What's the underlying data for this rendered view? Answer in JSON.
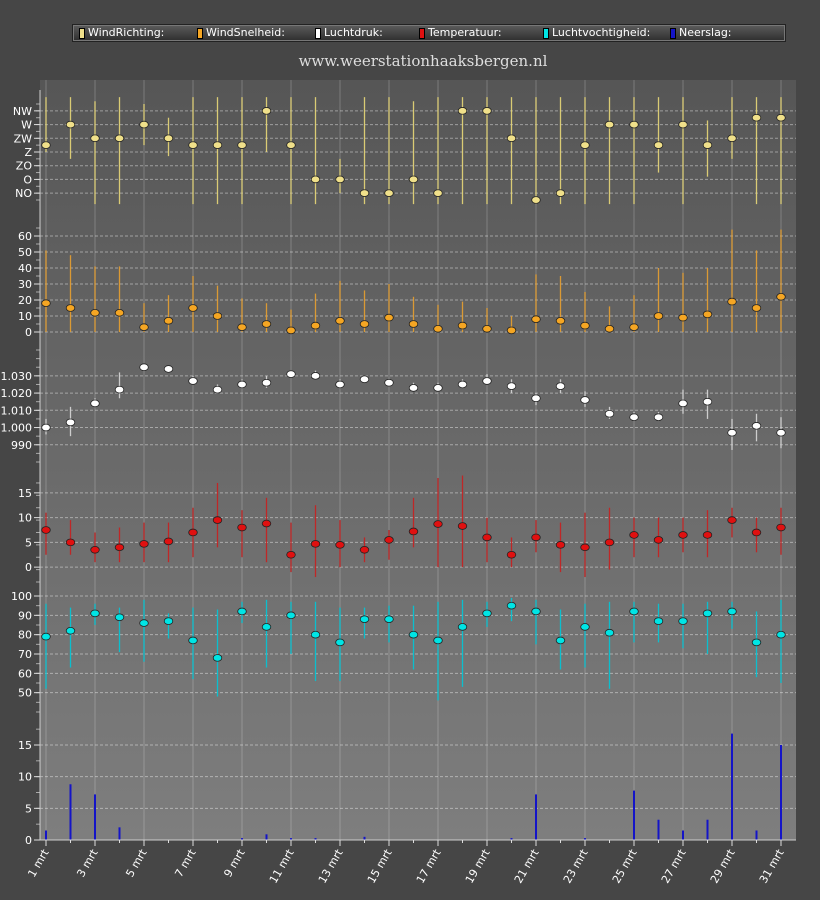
{
  "legend": [
    {
      "label": "WindRichting:",
      "color": "#f0e08a"
    },
    {
      "label": "WindSnelheid:",
      "color": "#f5a623"
    },
    {
      "label": "Luchtdruk:",
      "color": "#ffffff"
    },
    {
      "label": "Temperatuur:",
      "color": "#e01010"
    },
    {
      "label": "Luchtvochtigheid:",
      "color": "#00e5e5"
    },
    {
      "label": "Neerslag:",
      "color": "#1414c8"
    }
  ],
  "site_title": "www.weerstationhaaksbergen.nl",
  "chart_data": {
    "type": "scatter",
    "x": {
      "days": [
        1,
        2,
        3,
        4,
        5,
        6,
        7,
        8,
        9,
        10,
        11,
        12,
        13,
        14,
        15,
        16,
        17,
        18,
        19,
        20,
        21,
        22,
        23,
        24,
        25,
        26,
        27,
        28,
        29,
        30,
        31
      ],
      "tick_labels": [
        "1 mrt",
        "3 mrt",
        "5 mrt",
        "7 mrt",
        "9 mrt",
        "11 mrt",
        "13 mrt",
        "15 mrt",
        "17 mrt",
        "19 mrt",
        "21 mrt",
        "23 mrt",
        "25 mrt",
        "27 mrt",
        "29 mrt",
        "31 mrt"
      ]
    },
    "grid": true,
    "panels": [
      {
        "name": "WindRichting",
        "kind": "range-dot",
        "color": "#f0e08a",
        "range_color": "#e8d878",
        "ylim": [
          -0.5,
          6.5
        ],
        "ticks": [
          {
            "v": 0,
            "label": "NO"
          },
          {
            "v": 1,
            "label": "O"
          },
          {
            "v": 2,
            "label": "ZO"
          },
          {
            "v": 3,
            "label": "Z"
          },
          {
            "v": 4,
            "label": "ZW"
          },
          {
            "v": 5,
            "label": "W"
          },
          {
            "v": 6,
            "label": "NW"
          }
        ],
        "values": [
          3.5,
          5,
          4,
          4,
          5,
          4,
          3.5,
          3.5,
          3.5,
          6,
          3.5,
          1,
          1,
          0,
          0,
          1,
          0,
          6,
          6,
          4,
          -0.5,
          0,
          3.5,
          5,
          5,
          3.5,
          5,
          3.5,
          4,
          5.5,
          5.5
        ],
        "low": [
          3,
          2.5,
          -0.8,
          -0.8,
          3.5,
          2.7,
          -0.8,
          -0.8,
          -0.8,
          3,
          -0.8,
          -0.8,
          0,
          -0.8,
          -0.8,
          -0.8,
          -0.8,
          -0.8,
          -0.8,
          -0.8,
          -0.8,
          -0.8,
          -0.8,
          -0.8,
          -0.8,
          1.5,
          -0.8,
          1.2,
          2.5,
          -0.8,
          -0.8
        ],
        "high": [
          7,
          7,
          6.7,
          7,
          6.5,
          5.5,
          7,
          7,
          7,
          7,
          7,
          7,
          2.5,
          7,
          7,
          6.7,
          7,
          7,
          7,
          7,
          7,
          7,
          7,
          7,
          7,
          7,
          7,
          5.3,
          7,
          7,
          7
        ]
      },
      {
        "name": "WindSnelheid",
        "kind": "range-dot",
        "color": "#f5a623",
        "range_color": "#e8a030",
        "ylim": [
          0,
          65
        ],
        "ticks": [
          {
            "v": 0,
            "label": "0"
          },
          {
            "v": 10,
            "label": "10"
          },
          {
            "v": 20,
            "label": "20"
          },
          {
            "v": 30,
            "label": "30"
          },
          {
            "v": 40,
            "label": "40"
          },
          {
            "v": 50,
            "label": "50"
          },
          {
            "v": 60,
            "label": "60"
          }
        ],
        "values": [
          18,
          15,
          12,
          12,
          3,
          7,
          15,
          10,
          3,
          5,
          1,
          4,
          7,
          5,
          9,
          5,
          2,
          4,
          2,
          1,
          8,
          7,
          4,
          2,
          3,
          10,
          9,
          11,
          19,
          15,
          22
        ],
        "low": [
          0,
          0,
          0,
          0,
          0,
          0,
          0,
          0,
          0,
          0,
          0,
          0,
          0,
          0,
          0,
          0,
          0,
          0,
          0,
          0,
          0,
          0,
          0,
          0,
          0,
          0,
          0,
          0,
          0,
          0,
          0
        ],
        "high": [
          51,
          48,
          41,
          41,
          18,
          23,
          35,
          29,
          21,
          18,
          14,
          24,
          32,
          26,
          30,
          22,
          17,
          19,
          15,
          10,
          36,
          35,
          25,
          16,
          23,
          40,
          37,
          40,
          64,
          51,
          64
        ]
      },
      {
        "name": "Luchtdruk",
        "kind": "range-dot",
        "color": "#ffffff",
        "range_color": "#d8d8d8",
        "ylim": [
          980,
          1045
        ],
        "ticks": [
          {
            "v": 990,
            "label": "990"
          },
          {
            "v": 1000,
            "label": "1.000"
          },
          {
            "v": 1010,
            "label": "1.010"
          },
          {
            "v": 1020,
            "label": "1.020"
          },
          {
            "v": 1030,
            "label": "1.030"
          }
        ],
        "values": [
          1000,
          1003,
          1014,
          1022,
          1035,
          1034,
          1027,
          1022,
          1025,
          1026,
          1031,
          1030,
          1025,
          1028,
          1026,
          1023,
          1023,
          1025,
          1027,
          1024,
          1017,
          1024,
          1016,
          1008,
          1006,
          1006,
          1014,
          1015,
          997,
          1001,
          997
        ],
        "low": [
          996,
          995,
          1012,
          1017,
          1033,
          1032,
          1025,
          1020,
          1023,
          1023,
          1029,
          1028,
          1023,
          1026,
          1024,
          1021,
          1021,
          1023,
          1025,
          1020,
          1013,
          1020,
          1012,
          1005,
          1004,
          1004,
          1008,
          1005,
          987,
          992,
          988
        ],
        "high": [
          1005,
          1012,
          1017,
          1032,
          1037,
          1036,
          1030,
          1025,
          1028,
          1030,
          1033,
          1033,
          1028,
          1030,
          1028,
          1026,
          1026,
          1028,
          1031,
          1028,
          1020,
          1028,
          1021,
          1012,
          1009,
          1009,
          1022,
          1022,
          1005,
          1008,
          1006
        ]
      },
      {
        "name": "Temperatuur",
        "kind": "range-dot",
        "color": "#e01010",
        "range_color": "#c82020",
        "ylim": [
          -3,
          18
        ],
        "ticks": [
          {
            "v": 0,
            "label": "0"
          },
          {
            "v": 5,
            "label": "5"
          },
          {
            "v": 10,
            "label": "10"
          },
          {
            "v": 15,
            "label": "15"
          }
        ],
        "values": [
          7.5,
          5,
          3.5,
          4,
          4.7,
          5.2,
          7,
          9.5,
          8,
          8.8,
          2.5,
          4.7,
          4.5,
          3.5,
          5.5,
          7.2,
          8.7,
          8.3,
          6,
          2.5,
          6,
          4.5,
          4,
          5,
          6.5,
          5.5,
          6.5,
          6.5,
          9.5,
          7,
          8
        ],
        "low": [
          2.5,
          2.5,
          1,
          1,
          1,
          1,
          2,
          4,
          2,
          1,
          -1,
          -2,
          0,
          1,
          1.5,
          4,
          0,
          0,
          1,
          0,
          3,
          -1,
          -2,
          -0.5,
          2,
          2,
          3,
          2,
          6,
          3,
          2.5
        ],
        "high": [
          11,
          9.5,
          7,
          8,
          9,
          9,
          12,
          17,
          11.5,
          14,
          9,
          12.5,
          9.5,
          6,
          7.5,
          14,
          18,
          18.5,
          10,
          6,
          9.5,
          9,
          11,
          12,
          10,
          10,
          10,
          11.5,
          12,
          10,
          12
        ]
      },
      {
        "name": "Luchtvochtigheid",
        "kind": "range-dot",
        "color": "#00e5e5",
        "range_color": "#00c8d8",
        "ylim": [
          40,
          100
        ],
        "ticks": [
          {
            "v": 50,
            "label": "50"
          },
          {
            "v": 60,
            "label": "60"
          },
          {
            "v": 70,
            "label": "70"
          },
          {
            "v": 80,
            "label": "80"
          },
          {
            "v": 90,
            "label": "90"
          },
          {
            "v": 100,
            "label": "100"
          }
        ],
        "values": [
          79,
          82,
          91,
          89,
          86,
          87,
          77,
          68,
          92,
          84,
          90,
          80,
          76,
          88,
          88,
          80,
          77,
          84,
          91,
          95,
          92,
          77,
          84,
          81,
          92,
          87,
          87,
          91,
          92,
          76,
          80
        ],
        "low": [
          52,
          63,
          85,
          71,
          66,
          78,
          57,
          48,
          86,
          63,
          70,
          56,
          56,
          78,
          76,
          62,
          46,
          53,
          84,
          87,
          75,
          62,
          63,
          52,
          76,
          76,
          73,
          70,
          83,
          58,
          55
        ],
        "high": [
          96,
          94,
          96,
          94,
          98,
          91,
          94,
          93,
          97,
          98,
          97,
          97,
          94,
          94,
          95,
          95,
          97,
          98,
          97,
          99,
          98,
          93,
          96,
          97,
          97,
          96,
          96,
          97,
          97,
          92,
          98
        ]
      },
      {
        "name": "Neerslag",
        "kind": "bar",
        "color": "#1414c8",
        "ylim": [
          0,
          18
        ],
        "ticks": [
          {
            "v": 0,
            "label": "0"
          },
          {
            "v": 5,
            "label": "5"
          },
          {
            "v": 10,
            "label": "10"
          },
          {
            "v": 15,
            "label": "15"
          }
        ],
        "values": [
          1.5,
          8.8,
          7.2,
          2,
          0,
          0,
          0,
          0,
          0.3,
          0.9,
          0.3,
          0.3,
          0,
          0.5,
          0,
          0,
          0,
          0,
          0,
          0.3,
          7.2,
          0,
          0.3,
          0,
          7.8,
          3.2,
          1.5,
          3.2,
          16.8,
          1.5,
          15
        ]
      }
    ]
  }
}
